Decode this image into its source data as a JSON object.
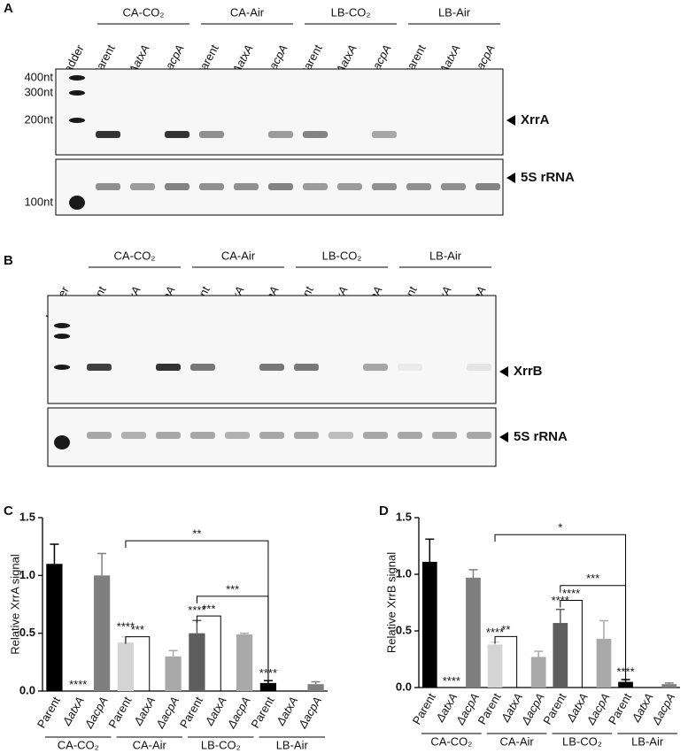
{
  "panels": {
    "A": {
      "label": "A",
      "groups": [
        "CA-CO₂",
        "CA-Air",
        "LB-CO₂",
        "LB-Air"
      ],
      "lanes": [
        "Ladder",
        "Parent",
        "ΔatxA",
        "ΔacpA",
        "Parent",
        "ΔatxA",
        "ΔacpA",
        "Parent",
        "ΔatxA",
        "ΔacpA",
        "Parent",
        "ΔatxA",
        "ΔacpA"
      ],
      "markers": [
        "400nt",
        "300nt",
        "200nt",
        "100nt"
      ],
      "bands": [
        "XrrA",
        "5S rRNA"
      ]
    },
    "B": {
      "label": "B",
      "groups": [
        "CA-CO₂",
        "CA-Air",
        "LB-CO₂",
        "LB-Air"
      ],
      "lanes": [
        "Ladder",
        "Parent",
        "ΔatxA",
        "ΔacpA",
        "Parent",
        "ΔatxA",
        "ΔacpA",
        "Parent",
        "ΔatxA",
        "ΔacpA",
        "Parent",
        "ΔatxA",
        "ΔacpA"
      ],
      "bands": [
        "XrrB",
        "5S rRNA"
      ]
    }
  },
  "chart_data": [
    {
      "type": "bar",
      "panel_label": "C",
      "y_label": "Relative XrrA signal",
      "categories": [
        "Parent",
        "ΔatxA",
        "ΔacpA",
        "Parent",
        "ΔatxA",
        "ΔacpA",
        "Parent",
        "ΔatxA",
        "ΔacpA",
        "Parent",
        "ΔatxA",
        "ΔacpA"
      ],
      "groups": [
        "CA-CO₂",
        "CA-Air",
        "LB-CO₂",
        "LB-Air"
      ],
      "values": [
        1.1,
        0,
        1.0,
        0.42,
        0,
        0.3,
        0.5,
        0,
        0.49,
        0.07,
        0,
        0.06
      ],
      "errors": [
        0.17,
        0,
        0.19,
        0.05,
        0,
        0.05,
        0.11,
        0,
        0.01,
        0.02,
        0,
        0.02
      ],
      "colors": [
        "#000000",
        "#000000",
        "#7f7f7f",
        "#d4d4d4",
        "#d4d4d4",
        "#a9a9a9",
        "#5e5e5e",
        "#5e5e5e",
        "#a9a9a9",
        "#000000",
        "#000000",
        "#7f7f7f"
      ],
      "annotations": [
        {
          "index": 1,
          "text": "****",
          "y": 0.02
        },
        {
          "index": 3,
          "text": "****",
          "y": 0.52
        },
        {
          "index": 6,
          "text": "****",
          "y": 0.66
        },
        {
          "index": 9,
          "text": "****",
          "y": 0.12
        }
      ],
      "brackets": [
        {
          "from": 3,
          "to": 4,
          "y": 0.47,
          "text": "***"
        },
        {
          "from": 6,
          "to": 7,
          "y": 0.65,
          "text": "***"
        },
        {
          "from": 6,
          "to": 9,
          "y": 0.82,
          "text": "***"
        },
        {
          "from": 3,
          "to": 9,
          "y": 1.3,
          "text": "**"
        }
      ],
      "ylim": [
        0,
        1.5
      ],
      "yticks": [
        {
          "value": 0,
          "label": "0.0"
        },
        0.5,
        {
          "value": 1,
          "label": "1.0"
        },
        1.5
      ]
    },
    {
      "type": "bar",
      "panel_label": "D",
      "y_label": "Relative XrrB signal",
      "categories": [
        "Parent",
        "ΔatxA",
        "ΔacpA",
        "Parent",
        "ΔatxA",
        "ΔacpA",
        "Parent",
        "ΔatxA",
        "ΔacpA",
        "Parent",
        "ΔatxA",
        "ΔacpA"
      ],
      "groups": [
        "CA-CO₂",
        "CA-Air",
        "LB-CO₂",
        "LB-Air"
      ],
      "values": [
        1.11,
        0,
        0.97,
        0.38,
        0,
        0.27,
        0.57,
        0,
        0.43,
        0.05,
        0,
        0.03
      ],
      "errors": [
        0.2,
        0,
        0.07,
        0.02,
        0,
        0.05,
        0.12,
        0,
        0.16,
        0.02,
        0,
        0.01
      ],
      "colors": [
        "#000000",
        "#000000",
        "#7f7f7f",
        "#d4d4d4",
        "#d4d4d4",
        "#a9a9a9",
        "#5e5e5e",
        "#5e5e5e",
        "#a9a9a9",
        "#000000",
        "#000000",
        "#7f7f7f"
      ],
      "annotations": [
        {
          "index": 1,
          "text": "****",
          "y": 0.02
        },
        {
          "index": 3,
          "text": "****",
          "y": 0.45
        },
        {
          "index": 6,
          "text": "****",
          "y": 0.73
        },
        {
          "index": 9,
          "text": "****",
          "y": 0.1
        }
      ],
      "brackets": [
        {
          "from": 3,
          "to": 4,
          "y": 0.45,
          "text": "**"
        },
        {
          "from": 6,
          "to": 7,
          "y": 0.77,
          "text": "****"
        },
        {
          "from": 6,
          "to": 9,
          "y": 0.9,
          "text": "***"
        },
        {
          "from": 3,
          "to": 9,
          "y": 1.35,
          "text": "*"
        }
      ],
      "ylim": [
        0,
        1.5
      ],
      "yticks": [
        {
          "value": 0,
          "label": "0.0"
        },
        0.5,
        {
          "value": 1,
          "label": "1.0"
        },
        1.5
      ]
    }
  ]
}
